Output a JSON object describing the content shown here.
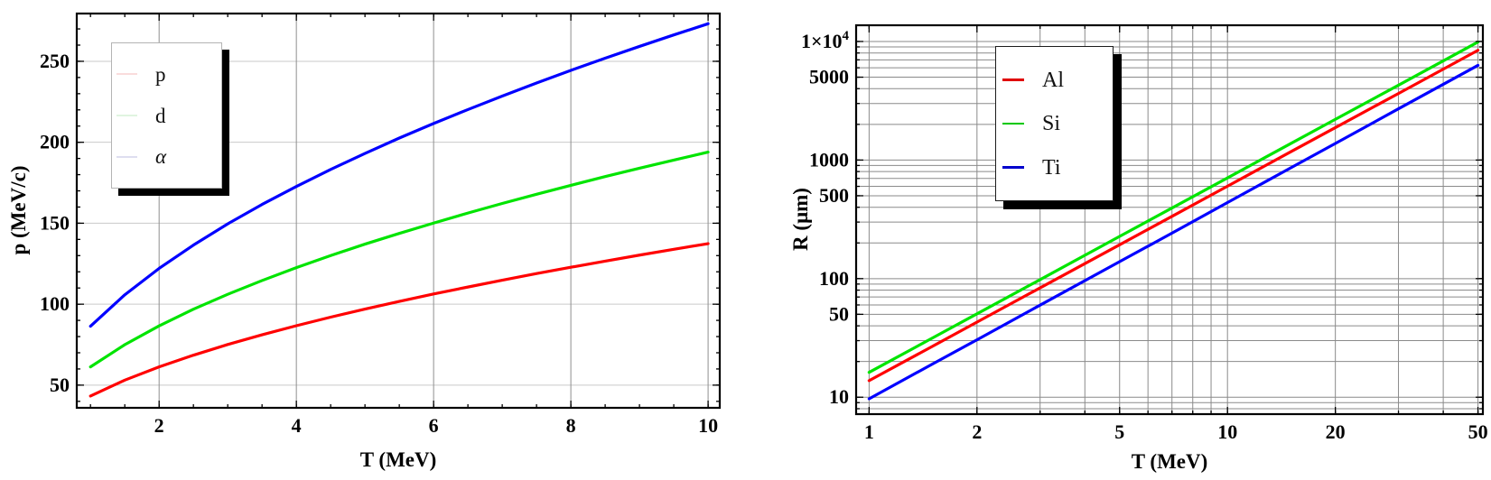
{
  "figure": {
    "background": "#ffffff"
  },
  "chart_data": [
    {
      "type": "line",
      "title": "",
      "xlabel": "T (MeV)",
      "ylabel": "p (MeV/c)",
      "xscale": "linear",
      "yscale": "linear",
      "xlim": [
        0.8,
        10.17
      ],
      "ylim": [
        36,
        279.5
      ],
      "xticks": {
        "major": [
          2,
          4,
          6,
          8,
          10
        ],
        "labels": [
          "2",
          "4",
          "6",
          "8",
          "10"
        ],
        "minor_step": 0.5
      },
      "yticks": {
        "major": [
          50,
          100,
          150,
          200,
          250
        ],
        "labels": [
          "50",
          "100",
          "150",
          "200",
          "250"
        ],
        "minor_step": 10
      },
      "grid": {
        "vertical": "major",
        "horizontal": "major",
        "vcolor": "#8f8f8f",
        "hcolor": "#c9c9c9"
      },
      "frame_color": "#000000",
      "legend": {
        "position": "top-left",
        "entries": [
          {
            "label": "p",
            "swatch": "#fadcdc",
            "italic": false
          },
          {
            "label": "d",
            "swatch": "#e0f4e0",
            "italic": false
          },
          {
            "label": "α",
            "swatch": "#dedef0",
            "italic": true
          }
        ]
      },
      "series": [
        {
          "name": "p",
          "color": "#ff0000",
          "x": [
            1,
            1.5,
            2,
            2.5,
            3,
            3.5,
            4,
            4.5,
            5,
            5.5,
            6,
            6.5,
            7,
            7.5,
            8,
            8.5,
            9,
            9.5,
            10
          ],
          "y": [
            43.3,
            53.1,
            61.3,
            68.5,
            75.1,
            81.1,
            86.7,
            92.0,
            97.0,
            101.7,
            106.3,
            110.6,
            114.8,
            118.9,
            122.8,
            126.6,
            130.3,
            133.9,
            137.4
          ]
        },
        {
          "name": "d",
          "color": "#00e400",
          "x": [
            1,
            1.5,
            2,
            2.5,
            3,
            3.5,
            4,
            4.5,
            5,
            5.5,
            6,
            6.5,
            7,
            7.5,
            8,
            8.5,
            9,
            9.5,
            10
          ],
          "y": [
            61.3,
            75.0,
            86.6,
            96.9,
            106.1,
            114.6,
            122.6,
            130.0,
            137.1,
            143.7,
            150.1,
            156.3,
            162.2,
            167.9,
            173.4,
            178.8,
            184.0,
            189.0,
            193.9
          ]
        },
        {
          "name": "α",
          "color": "#0000ff",
          "x": [
            1,
            1.5,
            2,
            2.5,
            3,
            3.5,
            4,
            4.5,
            5,
            5.5,
            6,
            6.5,
            7,
            7.5,
            8,
            8.5,
            9,
            9.5,
            10
          ],
          "y": [
            86.4,
            105.8,
            122.1,
            136.5,
            149.6,
            161.6,
            172.7,
            183.2,
            193.1,
            202.6,
            211.6,
            220.2,
            228.5,
            236.6,
            244.4,
            251.9,
            259.2,
            266.3,
            273.2
          ]
        }
      ]
    },
    {
      "type": "line",
      "title": "",
      "xlabel": "T (MeV)",
      "ylabel": "R (μm)",
      "xscale": "log",
      "yscale": "log",
      "xlim": [
        0.92,
        51.6
      ],
      "ylim": [
        7.2,
        13700
      ],
      "xticks": {
        "major": [
          1,
          2,
          5,
          10,
          20,
          50
        ],
        "labels": [
          "1",
          "2",
          "5",
          "10",
          "20",
          "50"
        ],
        "minor": "log"
      },
      "yticks": {
        "major": [
          10,
          50,
          100,
          500,
          1000,
          5000,
          10000
        ],
        "labels": [
          "10",
          "50",
          "100",
          "500",
          "1000",
          "5000",
          "1×10^4"
        ],
        "minor": "log"
      },
      "grid": {
        "vertical": "log",
        "horizontal": "log",
        "vcolor": "#8a8a8a",
        "hcolor": "#8a8a8a"
      },
      "frame_color": "#000000",
      "legend": {
        "position": "top-right",
        "entries": [
          {
            "label": "Al",
            "swatch": "#e00000",
            "italic": false
          },
          {
            "label": "Si",
            "swatch": "#00c800",
            "italic": false
          },
          {
            "label": "Ti",
            "swatch": "#0000cd",
            "italic": false
          }
        ]
      },
      "series": [
        {
          "name": "Al",
          "color": "#ff0000",
          "x": [
            1,
            1.5,
            2,
            3,
            5,
            7,
            10,
            15,
            20,
            30,
            50
          ],
          "y": [
            13.8,
            26.8,
            43.0,
            83.6,
            193,
            335,
            602,
            1172,
            1878,
            3643,
            8430
          ]
        },
        {
          "name": "Si",
          "color": "#00e500",
          "x": [
            1,
            1.5,
            2,
            3,
            5,
            7,
            10,
            15,
            20,
            30,
            50
          ],
          "y": [
            16.2,
            31.5,
            50.5,
            98.1,
            227,
            394,
            707,
            1376,
            2205,
            4277,
            9897
          ]
        },
        {
          "name": "Ti",
          "color": "#0000ff",
          "x": [
            1,
            1.5,
            2,
            3,
            5,
            7,
            10,
            15,
            20,
            30,
            50
          ],
          "y": [
            9.7,
            19.0,
            30.5,
            59.8,
            139,
            242,
            438,
            858,
            1380,
            2706,
            6290
          ]
        }
      ]
    }
  ]
}
